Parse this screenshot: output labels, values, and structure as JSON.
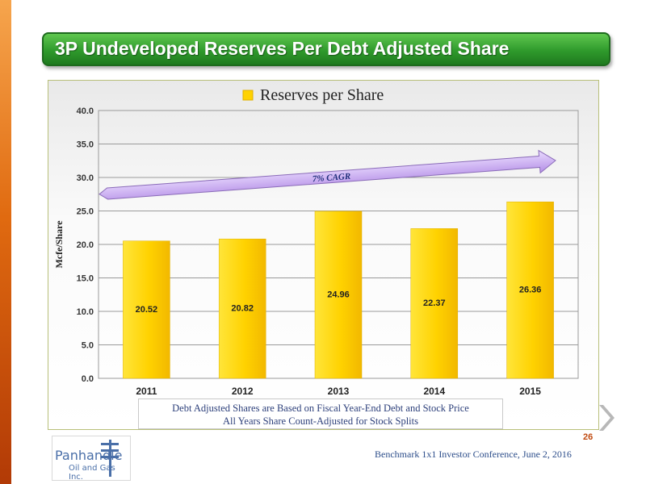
{
  "slide": {
    "title": "3P Undeveloped Reserves Per Debt Adjusted Share",
    "page_number": "26",
    "footer": "Benchmark 1x1 Investor Conference, June 2, 2016",
    "notes": [
      "Debt Adjusted Shares are Based on Fiscal Year-End Debt and Stock Price",
      "All Years Share Count-Adjusted for Stock Splits"
    ],
    "logo": {
      "name": "Panhandle",
      "sub": "Oil and Gas Inc."
    }
  },
  "colors": {
    "title_green": "#2f9a2c",
    "bar_yellow": "#ffd200",
    "arrow_purple": "#c9a8f0",
    "side_orange": "#e06a10"
  },
  "icons": {
    "next": "chevron-right-icon"
  },
  "chart_data": {
    "type": "bar",
    "title": "",
    "legend": [
      "Reserves per Share"
    ],
    "legend_position": "top",
    "xlabel": "",
    "ylabel": "Mcfe/Share",
    "categories": [
      "2011",
      "2012",
      "2013",
      "2014",
      "2015"
    ],
    "series": [
      {
        "name": "Reserves per Share",
        "values": [
          20.52,
          20.82,
          24.96,
          22.37,
          26.36
        ]
      }
    ],
    "ylim": [
      0,
      40
    ],
    "yticks": [
      "0.0",
      "5.0",
      "10.0",
      "15.0",
      "20.0",
      "25.0",
      "30.0",
      "35.0",
      "40.0"
    ],
    "grid": true,
    "annotation": "7% CAGR"
  }
}
